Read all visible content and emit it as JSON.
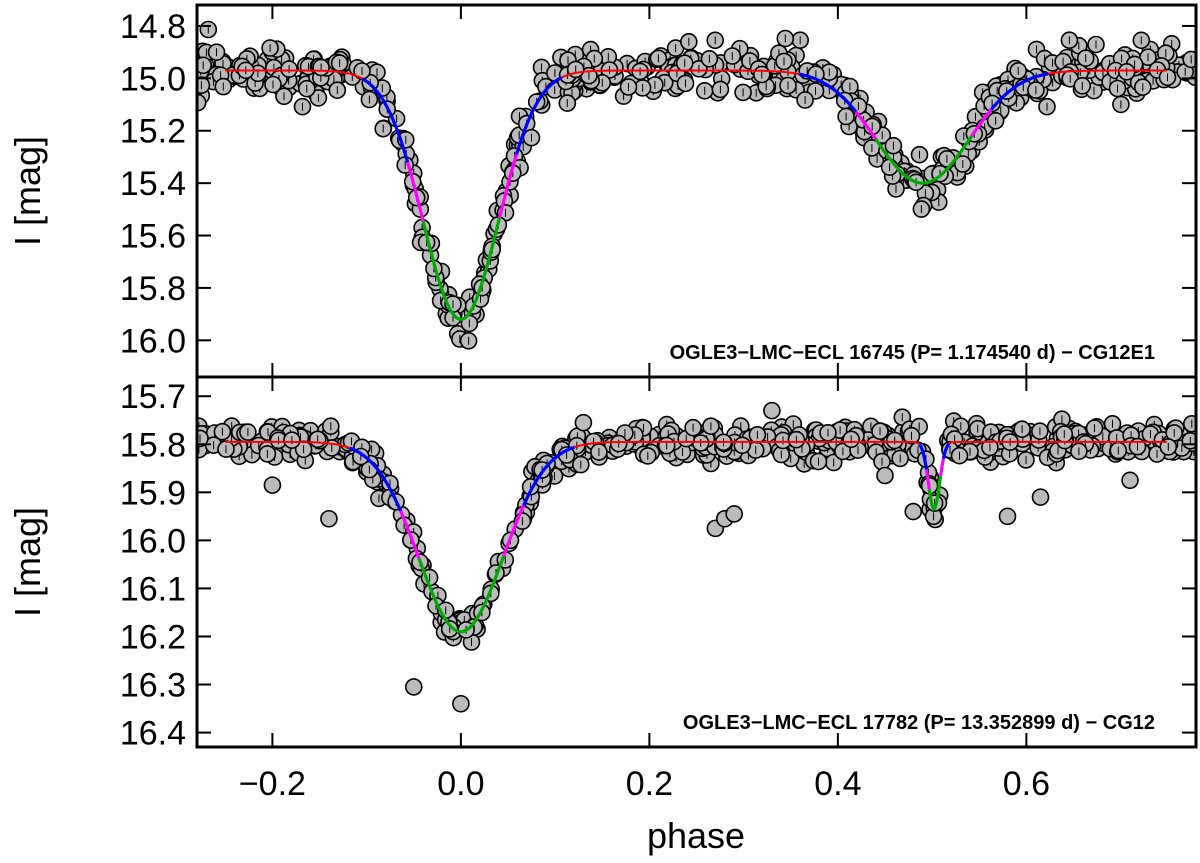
{
  "chart_data": [
    {
      "type": "scatter",
      "panel": "top",
      "xlabel": "phase",
      "ylabel": "I [mag]",
      "xlim": [
        -0.28,
        0.78
      ],
      "ylim": [
        16.14,
        14.72
      ],
      "yticks": [
        14.8,
        15.0,
        15.2,
        15.4,
        15.6,
        15.8,
        16.0
      ],
      "ytick_labels": [
        "14.8",
        "15.0",
        "15.2",
        "15.4",
        "15.6",
        "15.8",
        "16.0"
      ],
      "label": "OGLE3−LMC−ECL 16745  (P= 1.174540 d) − CG12E1",
      "model": {
        "baseline": 14.97,
        "primary": {
          "phase": 0.0,
          "depth": 0.95,
          "width": 0.04
        },
        "secondary": {
          "phase": 0.49,
          "depth": 0.43,
          "width": 0.05
        }
      },
      "outliers": [],
      "series": [
        {
          "name": "observations",
          "color": "#bbbbbb"
        },
        {
          "name": "model out of eclipse",
          "color": "#ff0000"
        },
        {
          "name": "model ingress/egress",
          "color": "#0000ff"
        },
        {
          "name": "model mid-branch",
          "color": "#ff00ff"
        },
        {
          "name": "model core",
          "color": "#00aa00"
        }
      ]
    },
    {
      "type": "scatter",
      "panel": "bottom",
      "xlabel": "phase",
      "ylabel": "I [mag]",
      "xlim": [
        -0.28,
        0.78
      ],
      "ylim": [
        16.43,
        15.66
      ],
      "yticks": [
        15.7,
        15.8,
        15.9,
        16.0,
        16.1,
        16.2,
        16.3,
        16.4
      ],
      "ytick_labels": [
        "15.7",
        "15.8",
        "15.9",
        "16.0",
        "16.1",
        "16.2",
        "16.3",
        "16.4"
      ],
      "xticks": [
        -0.2,
        0.0,
        0.2,
        0.4,
        0.6
      ],
      "xtick_labels": [
        "−0.2",
        "0.0",
        "0.2",
        "0.4",
        "0.6"
      ],
      "label": "OGLE3−LMC−ECL 17782  (P= 13.352899 d) − CG12",
      "model": {
        "baseline": 15.795,
        "primary": {
          "phase": 0.0,
          "depth": 0.395,
          "width": 0.045
        },
        "secondary": {
          "phase": 0.502,
          "depth": 0.14,
          "width": 0.006
        }
      },
      "outliers": [
        [
          -0.2,
          15.885
        ],
        [
          -0.14,
          15.955
        ],
        [
          -0.05,
          16.305
        ],
        [
          0.0,
          16.34
        ],
        [
          0.27,
          15.975
        ],
        [
          0.28,
          15.955
        ],
        [
          0.29,
          15.945
        ],
        [
          0.45,
          15.865
        ],
        [
          0.48,
          15.94
        ],
        [
          0.58,
          15.95
        ],
        [
          0.615,
          15.91
        ],
        [
          0.71,
          15.875
        ],
        [
          0.33,
          15.73
        ],
        [
          0.13,
          15.755
        ]
      ],
      "series": [
        {
          "name": "observations",
          "color": "#bbbbbb"
        },
        {
          "name": "model out of eclipse",
          "color": "#ff0000"
        },
        {
          "name": "model ingress/egress",
          "color": "#0000ff"
        },
        {
          "name": "model mid-branch",
          "color": "#ff00ff"
        },
        {
          "name": "model core",
          "color": "#00aa00"
        }
      ]
    }
  ]
}
